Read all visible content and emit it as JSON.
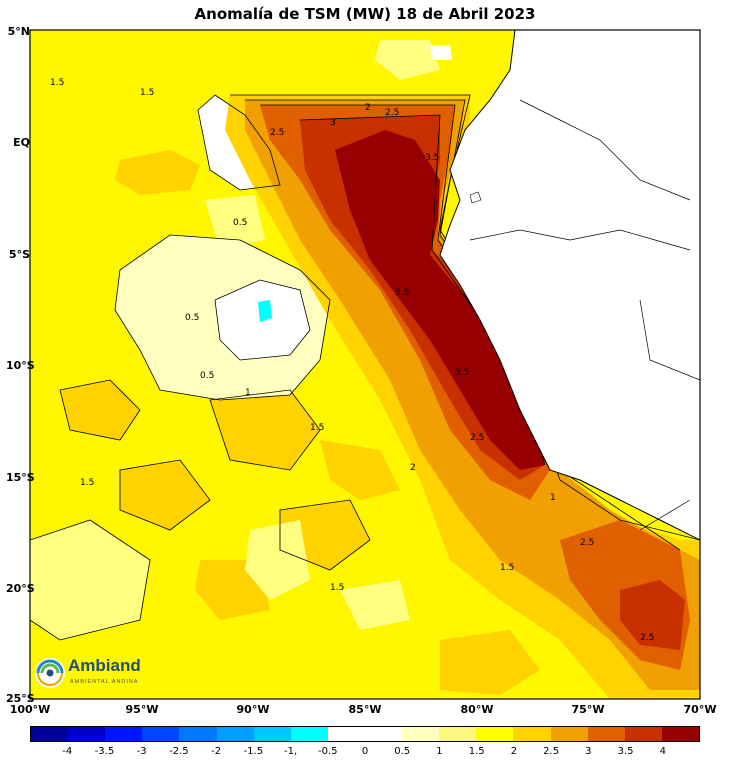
{
  "title": "Anomalía de TSM (MW) 18 de Abril 2023",
  "lat_labels": [
    "5°N",
    "EQ",
    "5°S",
    "10°S",
    "15°S",
    "20°S",
    "25°S"
  ],
  "lon_labels": [
    "100°W",
    "95°W",
    "90°W",
    "85°W",
    "80°W",
    "75°W",
    "70°W"
  ],
  "contour_labels": [
    "0.5",
    "1",
    "1.5",
    "2",
    "2.5",
    "3",
    "3.5"
  ],
  "logo": {
    "name": "Ambiand",
    "subtitle": "AMBIENTAL ANDINA",
    "icon": "ambiand-swirl-logo-icon"
  },
  "colorbar": {
    "labels": [
      "-4",
      "-3.5",
      "-3",
      "-2.5",
      "-2",
      "-1.5",
      "-1,",
      "-0.5",
      "0",
      "0.5",
      "1",
      "1.5",
      "2",
      "2.5",
      "3",
      "3.5",
      "4"
    ],
    "colors": [
      "#000096",
      "#0000c8",
      "#0014ff",
      "#0046ff",
      "#0078ff",
      "#00a0ff",
      "#00c8ff",
      "#00ffff",
      "#ffffff",
      "#ffffff",
      "#ffffc0",
      "#fff880",
      "#ffff00",
      "#ffd200",
      "#f0a000",
      "#e06000",
      "#c83000",
      "#960000"
    ]
  },
  "colors": {
    "land": "#ffffff",
    "ocean_base": "#fff700",
    "warm_core": "#960000"
  }
}
